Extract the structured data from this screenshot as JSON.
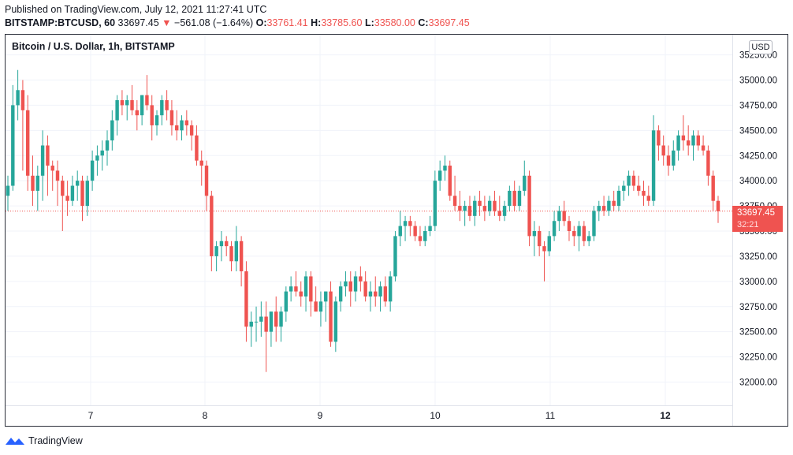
{
  "header": {
    "published_line": "Published on TradingView.com, July 12, 2021 11:27:41 UTC",
    "symbol": "BITSTAMP:BTCUSD, 60",
    "last_price": "33697.45",
    "change_arrow": "▼",
    "change": "−561.08 (−1.64%)",
    "o_label": "O:",
    "o_value": "33761.41",
    "h_label": "H:",
    "h_value": "33785.60",
    "l_label": "L:",
    "l_value": "33580.00",
    "c_label": "C:",
    "c_value": "33697.45"
  },
  "chart_title": "Bitcoin / U.S. Dollar, 1h, BITSTAMP",
  "currency_badge": "USD",
  "price_tag": {
    "price": "33697.45",
    "countdown": "32:21"
  },
  "footer": {
    "brand": "TradingView"
  },
  "colors": {
    "up": "#26a69a",
    "down": "#ef5350",
    "grid": "#f0f3fa",
    "text": "#131722"
  },
  "chart_data": {
    "type": "candlestick",
    "title": "Bitcoin / U.S. Dollar, 1h, BITSTAMP",
    "interval": "1h",
    "y_ticks": [
      35250,
      35000,
      34750,
      34500,
      34250,
      34000,
      33750,
      33500,
      33250,
      33000,
      32750,
      32500,
      32250,
      32000
    ],
    "x_ticks": [
      "7",
      "8",
      "9",
      "10",
      "11",
      "12"
    ],
    "ylim": [
      31800,
      35380
    ],
    "grid": true,
    "last_price_line": 33697.45,
    "candles": [
      {
        "o": 33850,
        "h": 34050,
        "l": 33700,
        "c": 33950
      },
      {
        "o": 33950,
        "h": 34950,
        "l": 33900,
        "c": 34750
      },
      {
        "o": 34750,
        "h": 35100,
        "l": 34600,
        "c": 34900
      },
      {
        "o": 34900,
        "h": 35000,
        "l": 34100,
        "c": 34700
      },
      {
        "o": 34700,
        "h": 34850,
        "l": 33900,
        "c": 34050
      },
      {
        "o": 34050,
        "h": 34250,
        "l": 33750,
        "c": 33900
      },
      {
        "o": 33900,
        "h": 34150,
        "l": 33700,
        "c": 34050
      },
      {
        "o": 34050,
        "h": 34500,
        "l": 33800,
        "c": 34350
      },
      {
        "o": 34350,
        "h": 34450,
        "l": 33850,
        "c": 34150
      },
      {
        "o": 34150,
        "h": 34200,
        "l": 33900,
        "c": 34100
      },
      {
        "o": 34100,
        "h": 34200,
        "l": 33750,
        "c": 34000
      },
      {
        "o": 34000,
        "h": 34050,
        "l": 33500,
        "c": 33850
      },
      {
        "o": 33850,
        "h": 34000,
        "l": 33650,
        "c": 33800
      },
      {
        "o": 33800,
        "h": 34050,
        "l": 33750,
        "c": 33950
      },
      {
        "o": 33950,
        "h": 34100,
        "l": 33800,
        "c": 34000
      },
      {
        "o": 34000,
        "h": 34050,
        "l": 33600,
        "c": 33750
      },
      {
        "o": 33750,
        "h": 34050,
        "l": 33650,
        "c": 34000
      },
      {
        "o": 34000,
        "h": 34300,
        "l": 33900,
        "c": 34200
      },
      {
        "o": 34200,
        "h": 34350,
        "l": 34050,
        "c": 34250
      },
      {
        "o": 34250,
        "h": 34400,
        "l": 34100,
        "c": 34300
      },
      {
        "o": 34300,
        "h": 34500,
        "l": 34150,
        "c": 34400
      },
      {
        "o": 34400,
        "h": 34700,
        "l": 34300,
        "c": 34600
      },
      {
        "o": 34600,
        "h": 34850,
        "l": 34450,
        "c": 34800
      },
      {
        "o": 34800,
        "h": 34900,
        "l": 34650,
        "c": 34750
      },
      {
        "o": 34750,
        "h": 34850,
        "l": 34600,
        "c": 34800
      },
      {
        "o": 34800,
        "h": 34950,
        "l": 34650,
        "c": 34700
      },
      {
        "o": 34700,
        "h": 34800,
        "l": 34500,
        "c": 34650
      },
      {
        "o": 34650,
        "h": 34850,
        "l": 34550,
        "c": 34850
      },
      {
        "o": 34850,
        "h": 35050,
        "l": 34700,
        "c": 34750
      },
      {
        "o": 34750,
        "h": 34850,
        "l": 34400,
        "c": 34550
      },
      {
        "o": 34550,
        "h": 34700,
        "l": 34450,
        "c": 34650
      },
      {
        "o": 34650,
        "h": 34850,
        "l": 34550,
        "c": 34800
      },
      {
        "o": 34800,
        "h": 34900,
        "l": 34600,
        "c": 34700
      },
      {
        "o": 34700,
        "h": 34800,
        "l": 34450,
        "c": 34550
      },
      {
        "o": 34550,
        "h": 34700,
        "l": 34400,
        "c": 34500
      },
      {
        "o": 34500,
        "h": 34650,
        "l": 34400,
        "c": 34600
      },
      {
        "o": 34600,
        "h": 34700,
        "l": 34450,
        "c": 34550
      },
      {
        "o": 34550,
        "h": 34600,
        "l": 34300,
        "c": 34450
      },
      {
        "o": 34450,
        "h": 34550,
        "l": 34150,
        "c": 34200
      },
      {
        "o": 34200,
        "h": 34300,
        "l": 33950,
        "c": 34150
      },
      {
        "o": 34150,
        "h": 34200,
        "l": 33700,
        "c": 33850
      },
      {
        "o": 33850,
        "h": 33900,
        "l": 33100,
        "c": 33250
      },
      {
        "o": 33250,
        "h": 33400,
        "l": 33100,
        "c": 33350
      },
      {
        "o": 33350,
        "h": 33500,
        "l": 33200,
        "c": 33400
      },
      {
        "o": 33400,
        "h": 33450,
        "l": 33250,
        "c": 33350
      },
      {
        "o": 33350,
        "h": 33400,
        "l": 33100,
        "c": 33200
      },
      {
        "o": 33200,
        "h": 33550,
        "l": 33100,
        "c": 33400
      },
      {
        "o": 33400,
        "h": 33450,
        "l": 32950,
        "c": 33100
      },
      {
        "o": 33100,
        "h": 33200,
        "l": 32400,
        "c": 32550
      },
      {
        "o": 32550,
        "h": 32700,
        "l": 32350,
        "c": 32600
      },
      {
        "o": 32600,
        "h": 32750,
        "l": 32400,
        "c": 32600
      },
      {
        "o": 32600,
        "h": 32800,
        "l": 32450,
        "c": 32650
      },
      {
        "o": 32650,
        "h": 32800,
        "l": 32100,
        "c": 32500
      },
      {
        "o": 32500,
        "h": 32700,
        "l": 32350,
        "c": 32700
      },
      {
        "o": 32700,
        "h": 32850,
        "l": 32400,
        "c": 32550
      },
      {
        "o": 32550,
        "h": 32750,
        "l": 32400,
        "c": 32700
      },
      {
        "o": 32700,
        "h": 32950,
        "l": 32600,
        "c": 32900
      },
      {
        "o": 32900,
        "h": 33050,
        "l": 32800,
        "c": 32950
      },
      {
        "o": 32950,
        "h": 33100,
        "l": 32850,
        "c": 32900
      },
      {
        "o": 32900,
        "h": 33000,
        "l": 32750,
        "c": 32850
      },
      {
        "o": 32850,
        "h": 33100,
        "l": 32700,
        "c": 33050
      },
      {
        "o": 33050,
        "h": 33100,
        "l": 32650,
        "c": 32800
      },
      {
        "o": 32800,
        "h": 32950,
        "l": 32700,
        "c": 32700
      },
      {
        "o": 32700,
        "h": 32900,
        "l": 32550,
        "c": 32800
      },
      {
        "o": 32800,
        "h": 32900,
        "l": 32600,
        "c": 32900
      },
      {
        "o": 32900,
        "h": 33000,
        "l": 32350,
        "c": 32400
      },
      {
        "o": 32400,
        "h": 32850,
        "l": 32300,
        "c": 32800
      },
      {
        "o": 32800,
        "h": 33000,
        "l": 32700,
        "c": 32950
      },
      {
        "o": 32950,
        "h": 33100,
        "l": 32850,
        "c": 33000
      },
      {
        "o": 33000,
        "h": 33100,
        "l": 32750,
        "c": 32900
      },
      {
        "o": 32900,
        "h": 33100,
        "l": 32800,
        "c": 33050
      },
      {
        "o": 33050,
        "h": 33150,
        "l": 32900,
        "c": 33000
      },
      {
        "o": 33000,
        "h": 33100,
        "l": 32800,
        "c": 32850
      },
      {
        "o": 32850,
        "h": 33000,
        "l": 32700,
        "c": 32900
      },
      {
        "o": 32900,
        "h": 33050,
        "l": 32750,
        "c": 32850
      },
      {
        "o": 32850,
        "h": 33000,
        "l": 32700,
        "c": 32950
      },
      {
        "o": 32950,
        "h": 33050,
        "l": 32750,
        "c": 32800
      },
      {
        "o": 32800,
        "h": 33100,
        "l": 32700,
        "c": 33050
      },
      {
        "o": 33050,
        "h": 33500,
        "l": 33000,
        "c": 33450
      },
      {
        "o": 33450,
        "h": 33700,
        "l": 33350,
        "c": 33550
      },
      {
        "o": 33550,
        "h": 33650,
        "l": 33400,
        "c": 33600
      },
      {
        "o": 33600,
        "h": 33650,
        "l": 33450,
        "c": 33550
      },
      {
        "o": 33550,
        "h": 33600,
        "l": 33400,
        "c": 33450
      },
      {
        "o": 33450,
        "h": 33550,
        "l": 33350,
        "c": 33400
      },
      {
        "o": 33400,
        "h": 33550,
        "l": 33350,
        "c": 33500
      },
      {
        "o": 33500,
        "h": 33650,
        "l": 33450,
        "c": 33550
      },
      {
        "o": 33550,
        "h": 34100,
        "l": 33500,
        "c": 34000
      },
      {
        "o": 34000,
        "h": 34200,
        "l": 33900,
        "c": 34100
      },
      {
        "o": 34100,
        "h": 34250,
        "l": 34000,
        "c": 34150
      },
      {
        "o": 34150,
        "h": 34200,
        "l": 33800,
        "c": 33850
      },
      {
        "o": 33850,
        "h": 34050,
        "l": 33700,
        "c": 33750
      },
      {
        "o": 33750,
        "h": 33900,
        "l": 33600,
        "c": 33700
      },
      {
        "o": 33700,
        "h": 33800,
        "l": 33550,
        "c": 33750
      },
      {
        "o": 33750,
        "h": 33850,
        "l": 33600,
        "c": 33650
      },
      {
        "o": 33650,
        "h": 33850,
        "l": 33550,
        "c": 33800
      },
      {
        "o": 33800,
        "h": 33900,
        "l": 33650,
        "c": 33750
      },
      {
        "o": 33750,
        "h": 33850,
        "l": 33600,
        "c": 33700
      },
      {
        "o": 33700,
        "h": 33850,
        "l": 33650,
        "c": 33800
      },
      {
        "o": 33800,
        "h": 33900,
        "l": 33650,
        "c": 33700
      },
      {
        "o": 33700,
        "h": 33850,
        "l": 33600,
        "c": 33650
      },
      {
        "o": 33650,
        "h": 33800,
        "l": 33600,
        "c": 33750
      },
      {
        "o": 33750,
        "h": 33950,
        "l": 33700,
        "c": 33900
      },
      {
        "o": 33900,
        "h": 34000,
        "l": 33700,
        "c": 33750
      },
      {
        "o": 33750,
        "h": 33950,
        "l": 33700,
        "c": 33900
      },
      {
        "o": 33900,
        "h": 34200,
        "l": 33850,
        "c": 34050
      },
      {
        "o": 34050,
        "h": 34100,
        "l": 33350,
        "c": 33450
      },
      {
        "o": 33450,
        "h": 33600,
        "l": 33250,
        "c": 33500
      },
      {
        "o": 33500,
        "h": 33550,
        "l": 33250,
        "c": 33350
      },
      {
        "o": 33350,
        "h": 33400,
        "l": 33000,
        "c": 33300
      },
      {
        "o": 33300,
        "h": 33500,
        "l": 33250,
        "c": 33450
      },
      {
        "o": 33450,
        "h": 33700,
        "l": 33400,
        "c": 33600
      },
      {
        "o": 33600,
        "h": 33750,
        "l": 33500,
        "c": 33700
      },
      {
        "o": 33700,
        "h": 33800,
        "l": 33550,
        "c": 33600
      },
      {
        "o": 33600,
        "h": 33650,
        "l": 33400,
        "c": 33500
      },
      {
        "o": 33500,
        "h": 33550,
        "l": 33350,
        "c": 33450
      },
      {
        "o": 33450,
        "h": 33600,
        "l": 33300,
        "c": 33550
      },
      {
        "o": 33550,
        "h": 33600,
        "l": 33350,
        "c": 33400
      },
      {
        "o": 33400,
        "h": 33500,
        "l": 33350,
        "c": 33450
      },
      {
        "o": 33450,
        "h": 33750,
        "l": 33400,
        "c": 33700
      },
      {
        "o": 33700,
        "h": 33800,
        "l": 33600,
        "c": 33750
      },
      {
        "o": 33750,
        "h": 33850,
        "l": 33650,
        "c": 33700
      },
      {
        "o": 33700,
        "h": 33850,
        "l": 33650,
        "c": 33800
      },
      {
        "o": 33800,
        "h": 33900,
        "l": 33700,
        "c": 33750
      },
      {
        "o": 33750,
        "h": 33950,
        "l": 33700,
        "c": 33900
      },
      {
        "o": 33900,
        "h": 34000,
        "l": 33800,
        "c": 33950
      },
      {
        "o": 33950,
        "h": 34100,
        "l": 33850,
        "c": 34050
      },
      {
        "o": 34050,
        "h": 34100,
        "l": 33900,
        "c": 33950
      },
      {
        "o": 33950,
        "h": 34050,
        "l": 33850,
        "c": 33900
      },
      {
        "o": 33900,
        "h": 34000,
        "l": 33750,
        "c": 33850
      },
      {
        "o": 33850,
        "h": 33950,
        "l": 33750,
        "c": 33800
      },
      {
        "o": 33800,
        "h": 34650,
        "l": 33750,
        "c": 34500
      },
      {
        "o": 34500,
        "h": 34550,
        "l": 34200,
        "c": 34350
      },
      {
        "o": 34350,
        "h": 34450,
        "l": 34150,
        "c": 34250
      },
      {
        "o": 34250,
        "h": 34350,
        "l": 34050,
        "c": 34150
      },
      {
        "o": 34150,
        "h": 34400,
        "l": 34100,
        "c": 34300
      },
      {
        "o": 34300,
        "h": 34500,
        "l": 34200,
        "c": 34450
      },
      {
        "o": 34450,
        "h": 34650,
        "l": 34300,
        "c": 34400
      },
      {
        "o": 34400,
        "h": 34550,
        "l": 34250,
        "c": 34350
      },
      {
        "o": 34350,
        "h": 34500,
        "l": 34200,
        "c": 34450
      },
      {
        "o": 34450,
        "h": 34500,
        "l": 34300,
        "c": 34350
      },
      {
        "o": 34350,
        "h": 34450,
        "l": 34250,
        "c": 34300
      },
      {
        "o": 34300,
        "h": 34350,
        "l": 33950,
        "c": 34050
      },
      {
        "o": 34050,
        "h": 34100,
        "l": 33700,
        "c": 33800
      },
      {
        "o": 33800,
        "h": 33850,
        "l": 33580,
        "c": 33697
      }
    ]
  }
}
